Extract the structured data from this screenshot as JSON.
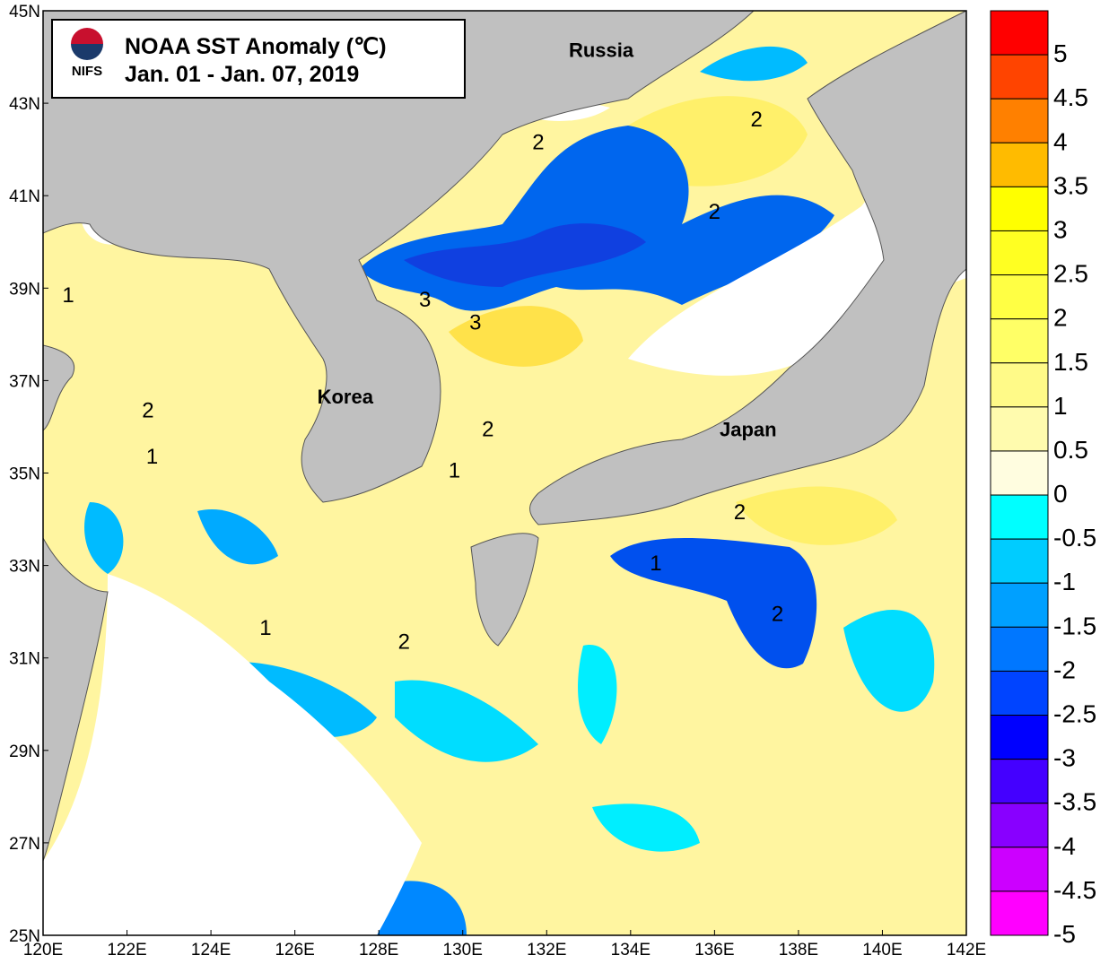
{
  "title": {
    "line1": "NOAA SST Anomaly (℃)",
    "line2": "Jan. 01 - Jan. 07, 2019",
    "logo_text": "NIFS"
  },
  "places": [
    {
      "name": "Russia",
      "lon": 133.3,
      "lat": 44.0
    },
    {
      "name": "Korea",
      "lon": 127.2,
      "lat": 36.5
    },
    {
      "name": "Japan",
      "lon": 136.8,
      "lat": 35.8
    }
  ],
  "contour_labels": [
    {
      "text": "1",
      "lon": 120.6,
      "lat": 38.7
    },
    {
      "text": "2",
      "lon": 122.5,
      "lat": 36.2
    },
    {
      "text": "1",
      "lon": 122.6,
      "lat": 35.2
    },
    {
      "text": "2",
      "lon": 131.8,
      "lat": 42.0
    },
    {
      "text": "2",
      "lon": 137.0,
      "lat": 42.5
    },
    {
      "text": "2",
      "lon": 136.0,
      "lat": 40.5
    },
    {
      "text": "3",
      "lon": 129.1,
      "lat": 38.6
    },
    {
      "text": "3",
      "lon": 130.3,
      "lat": 38.1
    },
    {
      "text": "2",
      "lon": 130.6,
      "lat": 35.8
    },
    {
      "text": "1",
      "lon": 129.8,
      "lat": 34.9
    },
    {
      "text": "2",
      "lon": 136.6,
      "lat": 34.0
    },
    {
      "text": "1",
      "lon": 134.6,
      "lat": 32.9
    },
    {
      "text": "2",
      "lon": 137.5,
      "lat": 31.8
    },
    {
      "text": "1",
      "lon": 125.3,
      "lat": 31.5
    },
    {
      "text": "2",
      "lon": 128.6,
      "lat": 31.2
    }
  ],
  "axes": {
    "x_ticks": [
      "120E",
      "122E",
      "124E",
      "126E",
      "128E",
      "130E",
      "132E",
      "134E",
      "136E",
      "138E",
      "140E",
      "142E"
    ],
    "y_ticks": [
      "25N",
      "27N",
      "29N",
      "31N",
      "33N",
      "35N",
      "37N",
      "39N",
      "41N",
      "43N",
      "45N"
    ],
    "lon_range": [
      120,
      142
    ],
    "lat_range": [
      25,
      45
    ]
  },
  "colorbar": {
    "labels": [
      "5",
      "4.5",
      "4",
      "3.5",
      "3",
      "2.5",
      "2",
      "1.5",
      "1",
      "0.5",
      "0",
      "-0.5",
      "-1",
      "-1.5",
      "-2",
      "-2.5",
      "-3",
      "-3.5",
      "-4",
      "-4.5",
      "-5"
    ],
    "colors": [
      "#ff0000",
      "#ff4400",
      "#ff8000",
      "#ffbb00",
      "#ffff00",
      "#ffff22",
      "#ffff44",
      "#ffff66",
      "#fffa88",
      "#fffbae",
      "#fffde0",
      "#00ffff",
      "#00ccff",
      "#00a0ff",
      "#0077ff",
      "#0044ff",
      "#0000ff",
      "#4400ff",
      "#8800ff",
      "#cc00ff",
      "#ff00ff"
    ]
  },
  "colors": {
    "land": "#c0c0c0",
    "ocean_base": "#fff5a0",
    "cloud": "#ffffff"
  }
}
